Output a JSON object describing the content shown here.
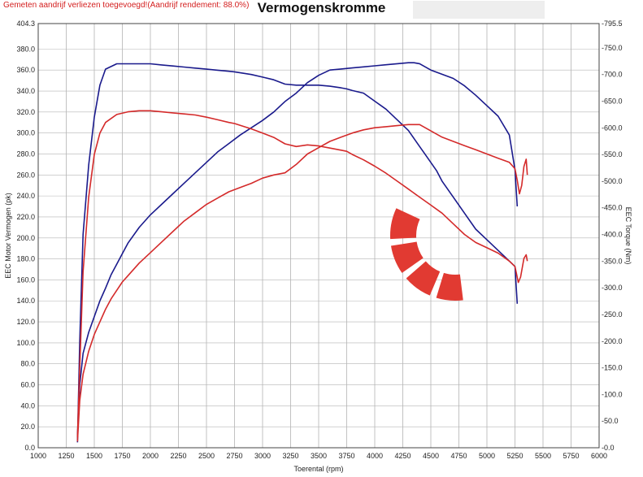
{
  "header": {
    "notice": "Gemeten aandrijf verliezen toegevoegd!(Aandrijf rendement: 88.0%)",
    "title": "Vermogenskromme"
  },
  "chart_data": {
    "type": "line",
    "title": "Vermogenskromme",
    "xlabel": "Toerental (rpm)",
    "ylabel": "EEC Motor Vermogen (pk)",
    "ylabel_right": "EEC Torque (Nm)",
    "xlim": [
      1000,
      6000
    ],
    "ylim": [
      0,
      404.3
    ],
    "ylim_right": [
      0,
      795.5
    ],
    "grid": true,
    "x_ticks": [
      "1000",
      "1250",
      "1500",
      "1750",
      "2000",
      "2250",
      "2500",
      "2750",
      "3000",
      "3250",
      "3500",
      "3750",
      "4000",
      "4250",
      "4500",
      "4750",
      "5000",
      "5250",
      "5500",
      "5750",
      "6000"
    ],
    "y_ticks": [
      "404.3",
      "380.0",
      "360.0",
      "340.0",
      "320.0",
      "300.0",
      "280.0",
      "260.0",
      "240.0",
      "220.0",
      "200.0",
      "180.0",
      "160.0",
      "140.0",
      "120.0",
      "100.0",
      "80.0",
      "60.0",
      "40.0",
      "20.0",
      "0.0"
    ],
    "y_ticks_right": [
      "795.5",
      "750.0",
      "700.0",
      "650.0",
      "600.0",
      "550.0",
      "500.0",
      "450.0",
      "400.0",
      "350.0",
      "300.0",
      "250.0",
      "200.0",
      "150.0",
      "100.0",
      "50.0",
      "0.0"
    ],
    "colors": {
      "tuned": "#1a1a8c",
      "stock": "#d42a2a"
    },
    "series": [
      {
        "axis": "right",
        "color": "tuned",
        "x": [
          1350,
          1370,
          1400,
          1450,
          1500,
          1550,
          1600,
          1700,
          1800,
          1900,
          2000,
          2100,
          2200,
          2300,
          2400,
          2500,
          2600,
          2700,
          2750,
          2900,
          3000,
          3100,
          3200,
          3300,
          3400,
          3500,
          3600,
          3700,
          3750,
          3800,
          3900,
          4000,
          4100,
          4200,
          4300,
          4350,
          4400,
          4450,
          4500,
          4550,
          4600,
          4700,
          4800,
          4900,
          5000,
          5100,
          5200,
          5250,
          5270
        ],
        "y": [
          10,
          200,
          400,
          530,
          620,
          680,
          710,
          720,
          720,
          720,
          720,
          718,
          716,
          714,
          712,
          710,
          708,
          706,
          705,
          700,
          695,
          690,
          682,
          680,
          680,
          680,
          678,
          675,
          673,
          670,
          665,
          650,
          635,
          615,
          595,
          580,
          565,
          550,
          535,
          520,
          500,
          470,
          440,
          410,
          390,
          370,
          350,
          340,
          270
        ]
      },
      {
        "axis": "left",
        "color": "tuned",
        "x": [
          1350,
          1370,
          1400,
          1450,
          1500,
          1550,
          1600,
          1650,
          1700,
          1750,
          1800,
          1900,
          2000,
          2100,
          2200,
          2300,
          2400,
          2500,
          2600,
          2700,
          2800,
          2900,
          3000,
          3100,
          3200,
          3300,
          3400,
          3500,
          3600,
          3700,
          3800,
          3900,
          4000,
          4100,
          4200,
          4300,
          4350,
          4400,
          4450,
          4500,
          4600,
          4700,
          4800,
          4900,
          5000,
          5100,
          5200,
          5250,
          5270
        ],
        "y": [
          10,
          60,
          90,
          110,
          125,
          140,
          152,
          165,
          175,
          185,
          195,
          210,
          222,
          232,
          242,
          252,
          262,
          272,
          282,
          290,
          298,
          305,
          312,
          320,
          330,
          338,
          348,
          355,
          360,
          361,
          362,
          363,
          364,
          365,
          366,
          367,
          367,
          366,
          363,
          360,
          356,
          352,
          345,
          336,
          326,
          316,
          298,
          265,
          230
        ]
      },
      {
        "axis": "right",
        "color": "stock",
        "x": [
          1350,
          1370,
          1400,
          1450,
          1500,
          1550,
          1600,
          1700,
          1800,
          1900,
          2000,
          2100,
          2200,
          2300,
          2400,
          2500,
          2600,
          2700,
          2750,
          2900,
          3000,
          3100,
          3200,
          3300,
          3400,
          3500,
          3600,
          3700,
          3750,
          3800,
          3900,
          4000,
          4100,
          4200,
          4300,
          4400,
          4500,
          4600,
          4700,
          4800,
          4900,
          5000,
          5100,
          5200,
          5250,
          5280,
          5300,
          5330,
          5350,
          5360
        ],
        "y": [
          20,
          150,
          330,
          470,
          550,
          590,
          610,
          625,
          630,
          632,
          632,
          630,
          628,
          626,
          624,
          620,
          615,
          610,
          608,
          598,
          590,
          582,
          570,
          565,
          568,
          566,
          562,
          558,
          556,
          550,
          540,
          528,
          515,
          500,
          485,
          470,
          455,
          440,
          420,
          400,
          385,
          375,
          365,
          350,
          340,
          310,
          320,
          355,
          362,
          350
        ]
      },
      {
        "axis": "left",
        "color": "stock",
        "x": [
          1350,
          1370,
          1400,
          1450,
          1500,
          1550,
          1600,
          1650,
          1700,
          1750,
          1800,
          1900,
          2000,
          2100,
          2200,
          2300,
          2400,
          2500,
          2600,
          2700,
          2800,
          2900,
          3000,
          3100,
          3200,
          3300,
          3400,
          3500,
          3600,
          3700,
          3800,
          3900,
          4000,
          4100,
          4200,
          4300,
          4350,
          4400,
          4450,
          4500,
          4600,
          4700,
          4800,
          4900,
          5000,
          5100,
          5200,
          5250,
          5270,
          5290,
          5310,
          5330,
          5350,
          5360
        ],
        "y": [
          6,
          45,
          70,
          92,
          108,
          120,
          132,
          142,
          150,
          158,
          164,
          176,
          186,
          196,
          206,
          216,
          224,
          232,
          238,
          244,
          248,
          252,
          257,
          260,
          262,
          270,
          280,
          286,
          292,
          296,
          300,
          303,
          305,
          306,
          307,
          308,
          308,
          308,
          305,
          302,
          296,
          292,
          288,
          284,
          280,
          276,
          272,
          266,
          255,
          242,
          250,
          268,
          275,
          260
        ]
      }
    ]
  }
}
